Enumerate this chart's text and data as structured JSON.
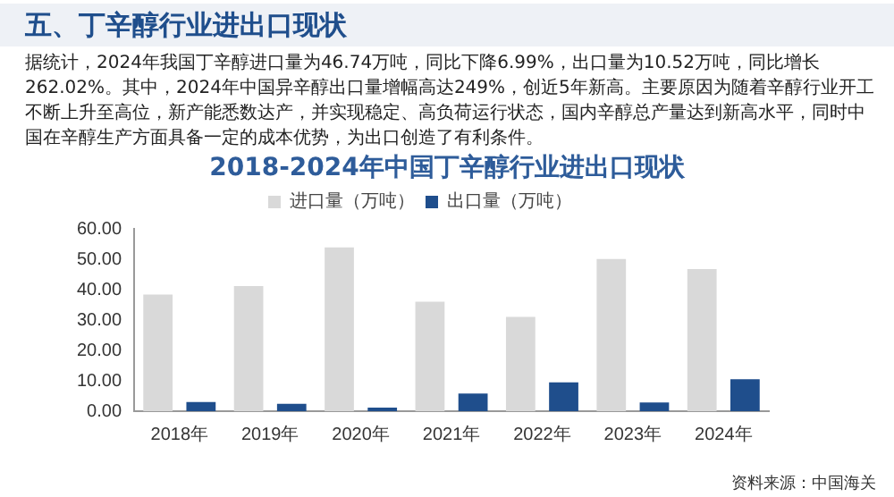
{
  "chart_data": {
    "type": "bar",
    "title": "2018-2024年中国丁辛醇行业进出口现状",
    "annotations": [
      "五、丁辛醇行业进出口现状",
      "据统计，2024年我国丁辛醇进口量为46.74万吨，同比下降6.99%，出口量为10.52万吨，同比增长262.02%。其中，2024年中国异辛醇出口量增幅高达249%，创近5年新高。主要原因为随着辛醇行业开工不断上升至高位，新产能悉数达产，并实现稳定、高负荷运行状态，国内辛醇总产量达到新高水平，同时中国在辛醇生产方面具备一定的成本优势，为出口创造了有利条件。",
      "资料来源：中国海关"
    ],
    "categories": [
      "2018年",
      "2019年",
      "2020年",
      "2021年",
      "2022年",
      "2023年",
      "2024年"
    ],
    "series": [
      {
        "name": "进口量（万吨）",
        "color": "#d9d9d9",
        "values": [
          38.4,
          41.2,
          53.9,
          36.0,
          31.0,
          50.1,
          46.74
        ]
      },
      {
        "name": "出口量（万吨）",
        "color": "#1f4e8c",
        "values": [
          3.0,
          2.4,
          1.2,
          5.8,
          9.5,
          2.9,
          10.52
        ]
      }
    ],
    "ylim": [
      0,
      60
    ],
    "yticks": [
      {
        "value": 0,
        "label": "0.00"
      },
      {
        "value": 10,
        "label": "10.00"
      },
      {
        "value": 20,
        "label": "20.00"
      },
      {
        "value": 30,
        "label": "30.00"
      },
      {
        "value": 40,
        "label": "40.00"
      },
      {
        "value": 50,
        "label": "50.00"
      },
      {
        "value": 60,
        "label": "60.00"
      }
    ],
    "grid": false,
    "legend": "top"
  }
}
